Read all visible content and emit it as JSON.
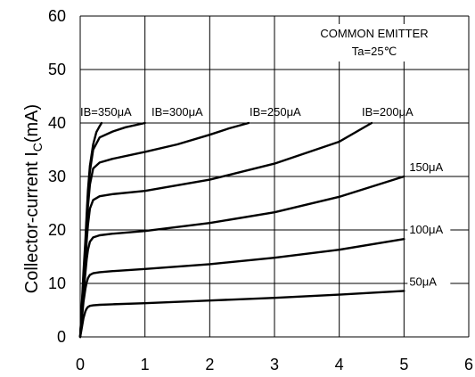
{
  "chart_data": {
    "type": "line",
    "title": "",
    "annotation_lines": [
      "COMMON EMITTER",
      "Ta=25℃"
    ],
    "ylabel_main": "Collector-current I",
    "ylabel_sub": "C",
    "ylabel_unit": "(mA)",
    "xlabel": "",
    "xlim": [
      0,
      6
    ],
    "ylim": [
      0,
      60
    ],
    "xticks": [
      "0",
      "1",
      "2",
      "3",
      "4",
      "5",
      "6"
    ],
    "yticks": [
      "0",
      "10",
      "20",
      "30",
      "40",
      "50",
      "60"
    ],
    "grid": true,
    "legend": "none",
    "series": [
      {
        "name": "50μA",
        "label_position": "right-edge",
        "x": [
          0,
          0.05,
          0.08,
          0.1,
          0.12,
          0.15,
          0.2,
          0.3,
          0.5,
          1,
          2,
          3,
          4,
          5
        ],
        "y": [
          0,
          3.5,
          4.8,
          5.3,
          5.6,
          5.8,
          5.9,
          6.0,
          6.1,
          6.3,
          6.8,
          7.3,
          7.9,
          8.6
        ]
      },
      {
        "name": "100μA",
        "label_position": "right-edge",
        "x": [
          0,
          0.05,
          0.08,
          0.1,
          0.12,
          0.15,
          0.2,
          0.3,
          0.5,
          1,
          2,
          3,
          4,
          5
        ],
        "y": [
          0,
          6.5,
          9.0,
          10.2,
          11.0,
          11.6,
          11.9,
          12.1,
          12.3,
          12.7,
          13.6,
          14.8,
          16.3,
          18.3
        ]
      },
      {
        "name": "150μA",
        "label_position": "right-edge",
        "x": [
          0,
          0.05,
          0.08,
          0.1,
          0.12,
          0.15,
          0.2,
          0.3,
          0.5,
          1,
          2,
          3,
          4,
          5
        ],
        "y": [
          0,
          8.0,
          12.0,
          14.5,
          16.3,
          17.8,
          18.6,
          19.0,
          19.3,
          19.8,
          21.3,
          23.3,
          26.2,
          30.0
        ]
      },
      {
        "name": "IB=200μA",
        "label_position": "top",
        "x": [
          0,
          0.05,
          0.08,
          0.1,
          0.12,
          0.15,
          0.2,
          0.3,
          0.5,
          1,
          2,
          3,
          4,
          4.5
        ],
        "y": [
          0,
          9.0,
          14.0,
          18.0,
          21.0,
          24.0,
          25.6,
          26.3,
          26.7,
          27.3,
          29.4,
          32.4,
          36.5,
          40.0
        ]
      },
      {
        "name": "IB=250μA",
        "label_position": "top",
        "x": [
          0,
          0.05,
          0.08,
          0.1,
          0.12,
          0.15,
          0.2,
          0.3,
          0.5,
          1,
          1.5,
          2,
          2.3,
          2.6
        ],
        "y": [
          0,
          10.0,
          16.0,
          20.5,
          24.5,
          28.5,
          31.5,
          32.6,
          33.3,
          34.6,
          36.0,
          37.8,
          39.0,
          40.0
        ]
      },
      {
        "name": "IB=300μA",
        "label_position": "top",
        "x": [
          0,
          0.05,
          0.08,
          0.1,
          0.12,
          0.15,
          0.2,
          0.3,
          0.5,
          0.7,
          1.0
        ],
        "y": [
          0,
          11.0,
          17.0,
          22.0,
          26.5,
          31.0,
          35.0,
          37.3,
          38.4,
          39.2,
          40.0
        ]
      },
      {
        "name": "IB=350μA",
        "label_position": "top",
        "x": [
          0,
          0.05,
          0.08,
          0.1,
          0.12,
          0.15,
          0.2,
          0.25,
          0.3,
          0.33
        ],
        "y": [
          0,
          12.0,
          18.0,
          23.0,
          27.5,
          32.0,
          36.0,
          38.3,
          39.4,
          40.0
        ]
      }
    ]
  }
}
